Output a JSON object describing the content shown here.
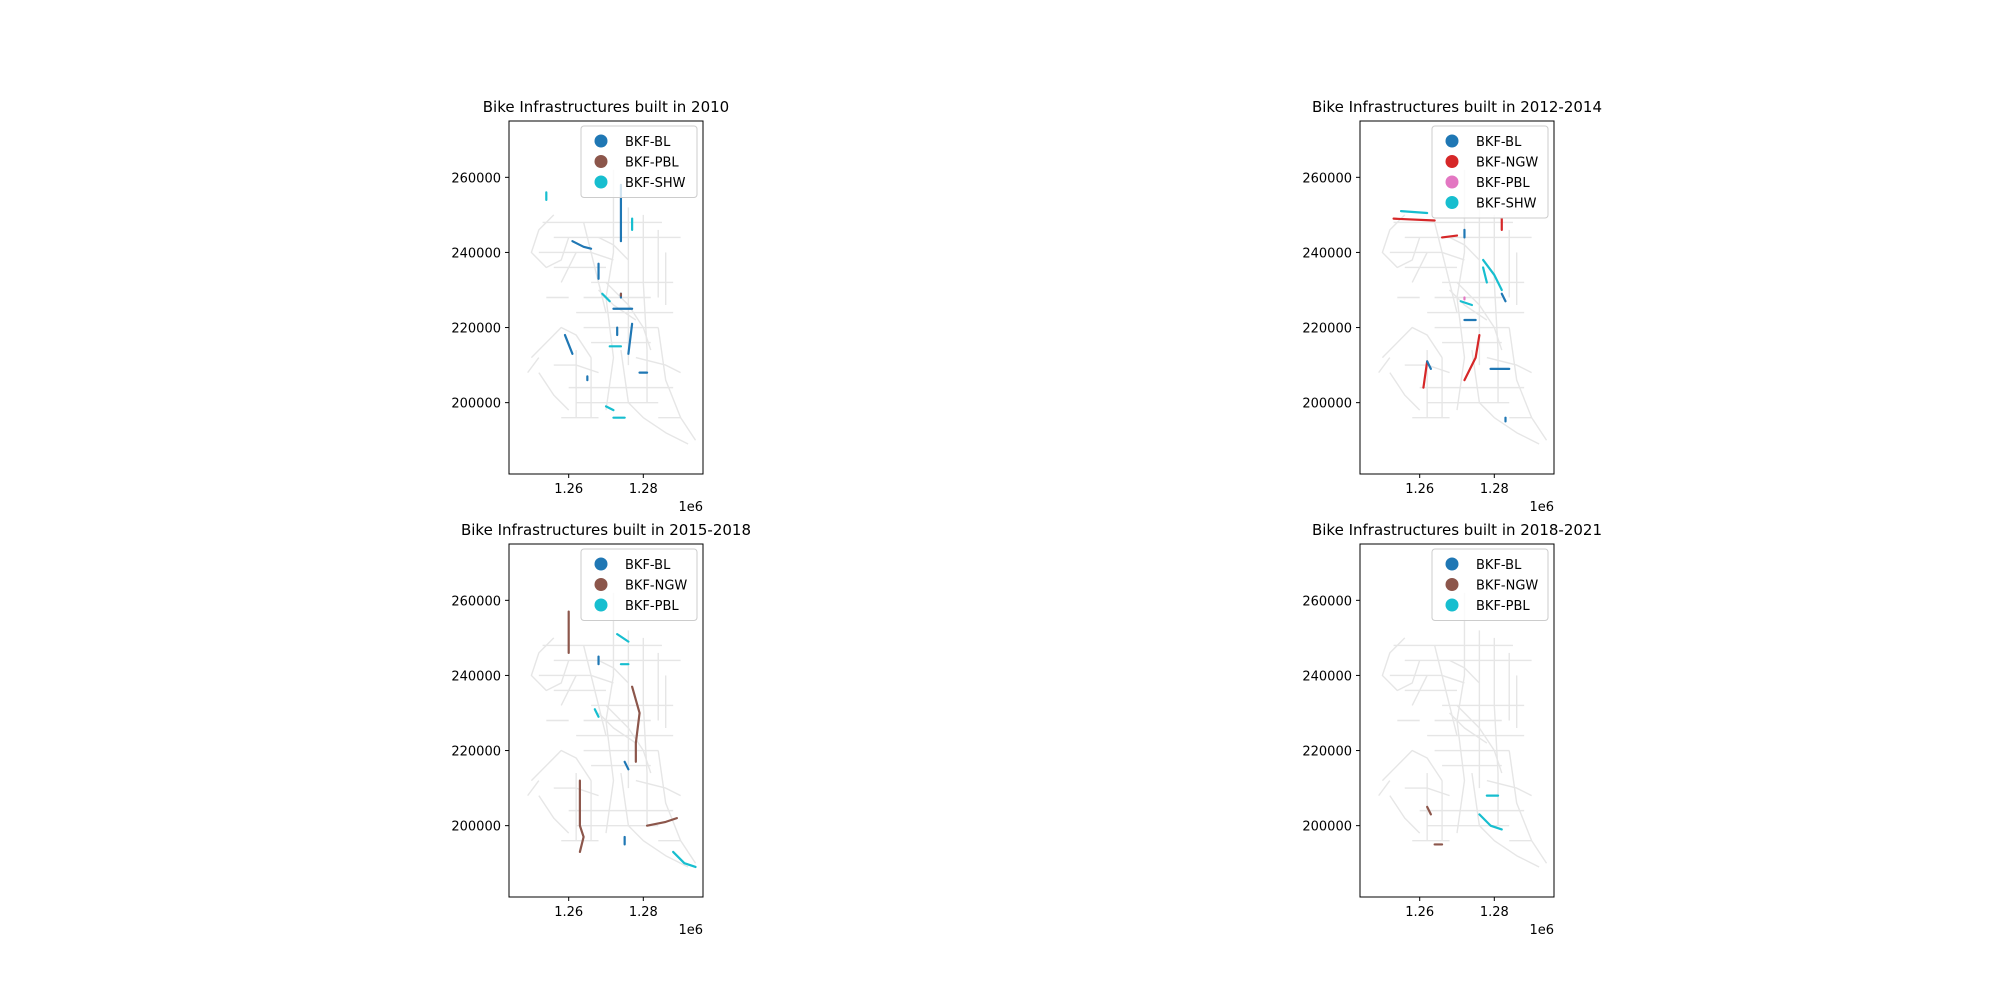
{
  "chart_data": [
    {
      "type": "map",
      "title": "Bike Infrastructures built in 2010",
      "xlim": [
        1244000,
        1296000
      ],
      "ylim": [
        181000,
        275000
      ],
      "xticks": [
        1260000,
        1280000
      ],
      "xtick_labels": [
        "1.26",
        "1.28"
      ],
      "x_offset_label": "1e6",
      "yticks": [
        200000,
        220000,
        240000,
        260000
      ],
      "ytick_labels": [
        "200000",
        "220000",
        "240000",
        "260000"
      ],
      "legend": [
        {
          "name": "BKF-BL",
          "color": "#1f77b4"
        },
        {
          "name": "BKF-PBL",
          "color": "#8c564b"
        },
        {
          "name": "BKF-SHW",
          "color": "#17becf"
        }
      ],
      "segments": [
        {
          "cat": "BKF-BL",
          "pts": [
            [
              1274000,
              258000
            ],
            [
              1274000,
              243000
            ]
          ]
        },
        {
          "cat": "BKF-BL",
          "pts": [
            [
              1261000,
              243000
            ],
            [
              1264000,
              241500
            ],
            [
              1266000,
              241000
            ]
          ]
        },
        {
          "cat": "BKF-BL",
          "pts": [
            [
              1268000,
              237000
            ],
            [
              1268000,
              233000
            ]
          ]
        },
        {
          "cat": "BKF-BL",
          "pts": [
            [
              1272000,
              225000
            ],
            [
              1277000,
              225000
            ]
          ]
        },
        {
          "cat": "BKF-BL",
          "pts": [
            [
              1277000,
              221000
            ],
            [
              1276000,
              213000
            ]
          ]
        },
        {
          "cat": "BKF-BL",
          "pts": [
            [
              1259000,
              218000
            ],
            [
              1261000,
              213000
            ]
          ]
        },
        {
          "cat": "BKF-BL",
          "pts": [
            [
              1265000,
              207000
            ],
            [
              1265000,
              206000
            ]
          ]
        },
        {
          "cat": "BKF-BL",
          "pts": [
            [
              1279000,
              208000
            ],
            [
              1281000,
              208000
            ]
          ]
        },
        {
          "cat": "BKF-BL",
          "pts": [
            [
              1273000,
              220000
            ],
            [
              1273000,
              218000
            ]
          ]
        },
        {
          "cat": "BKF-BL",
          "pts": [
            [
              1274000,
              229000
            ],
            [
              1274000,
              228000
            ]
          ]
        },
        {
          "cat": "BKF-SHW",
          "pts": [
            [
              1254000,
              256000
            ],
            [
              1254000,
              254000
            ]
          ]
        },
        {
          "cat": "BKF-SHW",
          "pts": [
            [
              1277000,
              249000
            ],
            [
              1277000,
              246000
            ]
          ]
        },
        {
          "cat": "BKF-SHW",
          "pts": [
            [
              1269000,
              229000
            ],
            [
              1271000,
              227000
            ]
          ]
        },
        {
          "cat": "BKF-SHW",
          "pts": [
            [
              1271000,
              215000
            ],
            [
              1274000,
              215000
            ]
          ]
        },
        {
          "cat": "BKF-SHW",
          "pts": [
            [
              1270000,
              199000
            ],
            [
              1272000,
              198000
            ]
          ]
        },
        {
          "cat": "BKF-SHW",
          "pts": [
            [
              1272000,
              196000
            ],
            [
              1275000,
              196000
            ]
          ]
        },
        {
          "cat": "BKF-PBL",
          "pts": [
            [
              1274000,
              229000
            ],
            [
              1274000,
              228500
            ]
          ]
        }
      ]
    },
    {
      "type": "map",
      "title": "Bike Infrastructures built in 2012-2014",
      "xlim": [
        1244000,
        1296000
      ],
      "ylim": [
        181000,
        275000
      ],
      "xticks": [
        1260000,
        1280000
      ],
      "xtick_labels": [
        "1.26",
        "1.28"
      ],
      "x_offset_label": "1e6",
      "yticks": [
        200000,
        220000,
        240000,
        260000
      ],
      "ytick_labels": [
        "200000",
        "220000",
        "240000",
        "260000"
      ],
      "legend": [
        {
          "name": "BKF-BL",
          "color": "#1f77b4"
        },
        {
          "name": "BKF-NGW",
          "color": "#d62728"
        },
        {
          "name": "BKF-PBL",
          "color": "#e377c2"
        },
        {
          "name": "BKF-SHW",
          "color": "#17becf"
        }
      ],
      "segments": [
        {
          "cat": "BKF-NGW",
          "pts": [
            [
              1253000,
              249000
            ],
            [
              1264000,
              248500
            ]
          ]
        },
        {
          "cat": "BKF-NGW",
          "pts": [
            [
              1266000,
              244000
            ],
            [
              1270000,
              244500
            ]
          ]
        },
        {
          "cat": "BKF-NGW",
          "pts": [
            [
              1282000,
              249000
            ],
            [
              1282000,
              246000
            ]
          ]
        },
        {
          "cat": "BKF-NGW",
          "pts": [
            [
              1262000,
              211000
            ],
            [
              1261000,
              204000
            ]
          ]
        },
        {
          "cat": "BKF-NGW",
          "pts": [
            [
              1276000,
              218000
            ],
            [
              1275000,
              212000
            ],
            [
              1272000,
              206000
            ]
          ]
        },
        {
          "cat": "BKF-SHW",
          "pts": [
            [
              1255000,
              251000
            ],
            [
              1262000,
              250500
            ]
          ]
        },
        {
          "cat": "BKF-SHW",
          "pts": [
            [
              1277000,
              238000
            ],
            [
              1280000,
              234000
            ],
            [
              1282000,
              230000
            ]
          ]
        },
        {
          "cat": "BKF-SHW",
          "pts": [
            [
              1271000,
              227000
            ],
            [
              1274000,
              226000
            ]
          ]
        },
        {
          "cat": "BKF-SHW",
          "pts": [
            [
              1277000,
              236000
            ],
            [
              1278000,
              232000
            ]
          ]
        },
        {
          "cat": "BKF-BL",
          "pts": [
            [
              1282000,
              229000
            ],
            [
              1283000,
              227000
            ]
          ]
        },
        {
          "cat": "BKF-BL",
          "pts": [
            [
              1279000,
              209000
            ],
            [
              1284000,
              209000
            ]
          ]
        },
        {
          "cat": "BKF-BL",
          "pts": [
            [
              1272000,
              222000
            ],
            [
              1275000,
              222000
            ]
          ]
        },
        {
          "cat": "BKF-BL",
          "pts": [
            [
              1262000,
              211000
            ],
            [
              1263000,
              209000
            ]
          ]
        },
        {
          "cat": "BKF-BL",
          "pts": [
            [
              1272000,
              246000
            ],
            [
              1272000,
              244000
            ]
          ]
        },
        {
          "cat": "BKF-BL",
          "pts": [
            [
              1283000,
              196000
            ],
            [
              1283000,
              195000
            ]
          ]
        },
        {
          "cat": "BKF-PBL",
          "pts": [
            [
              1272000,
              228000
            ],
            [
              1272000,
              227500
            ]
          ]
        }
      ]
    },
    {
      "type": "map",
      "title": "Bike Infrastructures built in 2015-2018",
      "xlim": [
        1244000,
        1296000
      ],
      "ylim": [
        181000,
        275000
      ],
      "xticks": [
        1260000,
        1280000
      ],
      "xtick_labels": [
        "1.26",
        "1.28"
      ],
      "x_offset_label": "1e6",
      "yticks": [
        200000,
        220000,
        240000,
        260000
      ],
      "ytick_labels": [
        "200000",
        "220000",
        "240000",
        "260000"
      ],
      "legend": [
        {
          "name": "BKF-BL",
          "color": "#1f77b4"
        },
        {
          "name": "BKF-NGW",
          "color": "#8c564b"
        },
        {
          "name": "BKF-PBL",
          "color": "#17becf"
        }
      ],
      "segments": [
        {
          "cat": "BKF-NGW",
          "pts": [
            [
              1260000,
              257000
            ],
            [
              1260000,
              246000
            ]
          ]
        },
        {
          "cat": "BKF-NGW",
          "pts": [
            [
              1277000,
              237000
            ],
            [
              1279000,
              230000
            ],
            [
              1278000,
              222000
            ],
            [
              1278000,
              217000
            ]
          ]
        },
        {
          "cat": "BKF-NGW",
          "pts": [
            [
              1263000,
              212000
            ],
            [
              1263000,
              200000
            ],
            [
              1264000,
              197000
            ],
            [
              1263000,
              193000
            ]
          ]
        },
        {
          "cat": "BKF-NGW",
          "pts": [
            [
              1281000,
              200000
            ],
            [
              1286000,
              201000
            ],
            [
              1289000,
              202000
            ]
          ]
        },
        {
          "cat": "BKF-PBL",
          "pts": [
            [
              1273000,
              251000
            ],
            [
              1276000,
              249000
            ]
          ]
        },
        {
          "cat": "BKF-PBL",
          "pts": [
            [
              1274000,
              243000
            ],
            [
              1276000,
              243000
            ]
          ]
        },
        {
          "cat": "BKF-PBL",
          "pts": [
            [
              1267000,
              231000
            ],
            [
              1268000,
              229000
            ]
          ]
        },
        {
          "cat": "BKF-PBL",
          "pts": [
            [
              1288000,
              193000
            ],
            [
              1291000,
              190000
            ],
            [
              1294000,
              189000
            ]
          ]
        },
        {
          "cat": "BKF-BL",
          "pts": [
            [
              1268000,
              245000
            ],
            [
              1268000,
              243000
            ]
          ]
        },
        {
          "cat": "BKF-BL",
          "pts": [
            [
              1275000,
              217000
            ],
            [
              1276000,
              215000
            ]
          ]
        },
        {
          "cat": "BKF-BL",
          "pts": [
            [
              1275000,
              197000
            ],
            [
              1275000,
              195000
            ]
          ]
        }
      ]
    },
    {
      "type": "map",
      "title": "Bike Infrastructures built in 2018-2021",
      "xlim": [
        1244000,
        1296000
      ],
      "ylim": [
        181000,
        275000
      ],
      "xticks": [
        1260000,
        1280000
      ],
      "xtick_labels": [
        "1.26",
        "1.28"
      ],
      "x_offset_label": "1e6",
      "yticks": [
        200000,
        220000,
        240000,
        260000
      ],
      "ytick_labels": [
        "200000",
        "220000",
        "240000",
        "260000"
      ],
      "legend": [
        {
          "name": "BKF-BL",
          "color": "#1f77b4"
        },
        {
          "name": "BKF-NGW",
          "color": "#8c564b"
        },
        {
          "name": "BKF-PBL",
          "color": "#17becf"
        }
      ],
      "segments": [
        {
          "cat": "BKF-NGW",
          "pts": [
            [
              1262000,
              205000
            ],
            [
              1263000,
              203000
            ]
          ]
        },
        {
          "cat": "BKF-NGW",
          "pts": [
            [
              1264000,
              195000
            ],
            [
              1266000,
              195000
            ]
          ]
        },
        {
          "cat": "BKF-PBL",
          "pts": [
            [
              1276000,
              203000
            ],
            [
              1279000,
              200000
            ],
            [
              1282000,
              199000
            ]
          ]
        },
        {
          "cat": "BKF-PBL",
          "pts": [
            [
              1278000,
              208000
            ],
            [
              1281000,
              208000
            ]
          ]
        }
      ]
    }
  ],
  "base_network_color": "#e6e6e6"
}
